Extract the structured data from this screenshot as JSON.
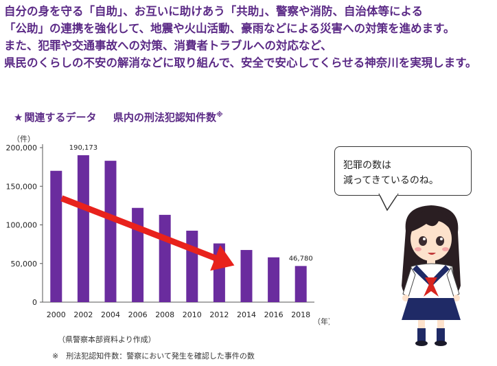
{
  "intro": {
    "lines": [
      "自分の身を守る「自助」、お互いに助けあう「共助」、警察や消防、自治体等による",
      "「公助」の連携を強化して、地震や火山活動、豪雨などによる災害への対策を進めます。",
      "また、犯罪や交通事故への対策、消費者トラブルへの対応など、",
      "県民のくらしの不安の解消などに取り組んで、安全で安心してくらせる神奈川を実現します。"
    ]
  },
  "section": {
    "star": "★",
    "label": "関連するデータ",
    "title": "県内の刑法犯認知件数",
    "note_mark": "※"
  },
  "chart_data": {
    "type": "bar",
    "title": "県内の刑法犯認知件数",
    "unit_y": "（件）",
    "unit_x": "（年）",
    "categories": [
      "2000",
      "2002",
      "2004",
      "2006",
      "2008",
      "2010",
      "2012",
      "2014",
      "2016",
      "2018"
    ],
    "values": [
      170000,
      190173,
      183000,
      122000,
      113000,
      92500,
      76000,
      67500,
      58000,
      46780
    ],
    "data_labels": {
      "1": "190,173",
      "9": "46,780"
    },
    "ylim": [
      0,
      200000
    ],
    "yticks": [
      0,
      50000,
      100000,
      150000,
      200000
    ],
    "ytick_labels": [
      "0",
      "50,000",
      "100,000",
      "150,000",
      "200,000"
    ],
    "bar_color": "#6a2c9e",
    "arrow_color": "#e8221c",
    "trend_arrow": {
      "from_index": 0,
      "to_index": 6
    }
  },
  "source_note": "（県警察本部資料より作成）",
  "footnote": "※　刑法犯認知件数：警察において発生を確認した事件の数",
  "bubble": {
    "line1": "犯罪の数は",
    "line2": "減ってきているのね。"
  },
  "colors": {
    "text_purple": "#5b2a86",
    "hair": "#2a1e22",
    "uniform": "#ffffff",
    "skirt": "#1f2a66",
    "scarf": "#d8241f"
  }
}
